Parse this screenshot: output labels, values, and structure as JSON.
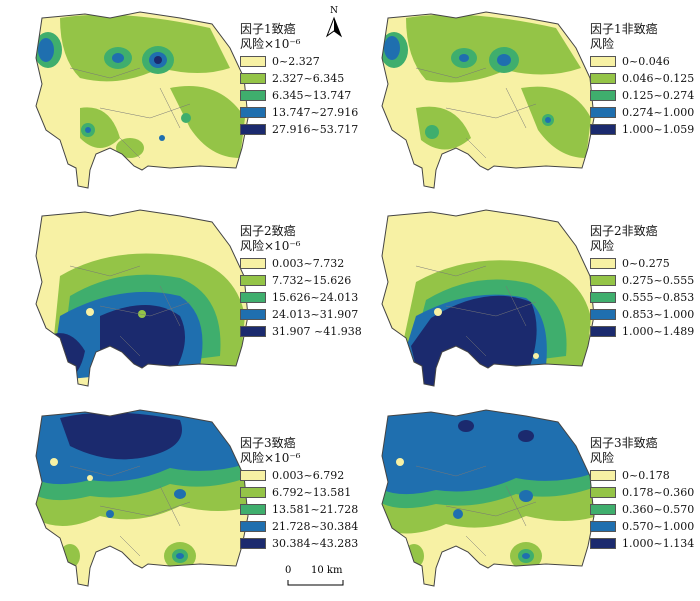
{
  "colors": {
    "c1": "#f7f1a4",
    "c2": "#94c447",
    "c3": "#3fae6d",
    "c4": "#1f6faf",
    "c5": "#1b2a6e",
    "boundary": "#444444"
  },
  "north": {
    "label": "N",
    "icon": "north-arrow-icon"
  },
  "scale": {
    "zero": "0",
    "dist": "10 km"
  },
  "panels": [
    {
      "title": [
        "因子1致癌",
        "风险×10⁻⁶"
      ],
      "classes": [
        "0~2.327",
        "2.327~6.345",
        "6.345~13.747",
        "13.747~27.916",
        "27.916~53.717"
      ]
    },
    {
      "title": [
        "因子1非致癌",
        "风险"
      ],
      "classes": [
        "0~0.046",
        "0.046~0.125",
        "0.125~0.274",
        "0.274~1.000",
        "1.000~1.059"
      ]
    },
    {
      "title": [
        "因子2致癌",
        "风险×10⁻⁶"
      ],
      "classes": [
        "0.003~7.732",
        "7.732~15.626",
        "15.626~24.013",
        "24.013~31.907",
        "31.907 ~41.938"
      ]
    },
    {
      "title": [
        "因子2非致癌",
        "风险"
      ],
      "classes": [
        "0~0.275",
        "0.275~0.555",
        "0.555~0.853",
        "0.853~1.000",
        "1.000~1.489"
      ]
    },
    {
      "title": [
        "因子3致癌",
        "风险×10⁻⁶"
      ],
      "classes": [
        "0.003~6.792",
        "6.792~13.581",
        "13.581~21.728",
        "21.728~30.384",
        "30.384~43.283"
      ]
    },
    {
      "title": [
        "因子3非致癌",
        "风险"
      ],
      "classes": [
        "0~0.178",
        "0.178~0.360",
        "0.360~0.570",
        "0.570~1.000",
        "1.000~1.134"
      ]
    }
  ]
}
